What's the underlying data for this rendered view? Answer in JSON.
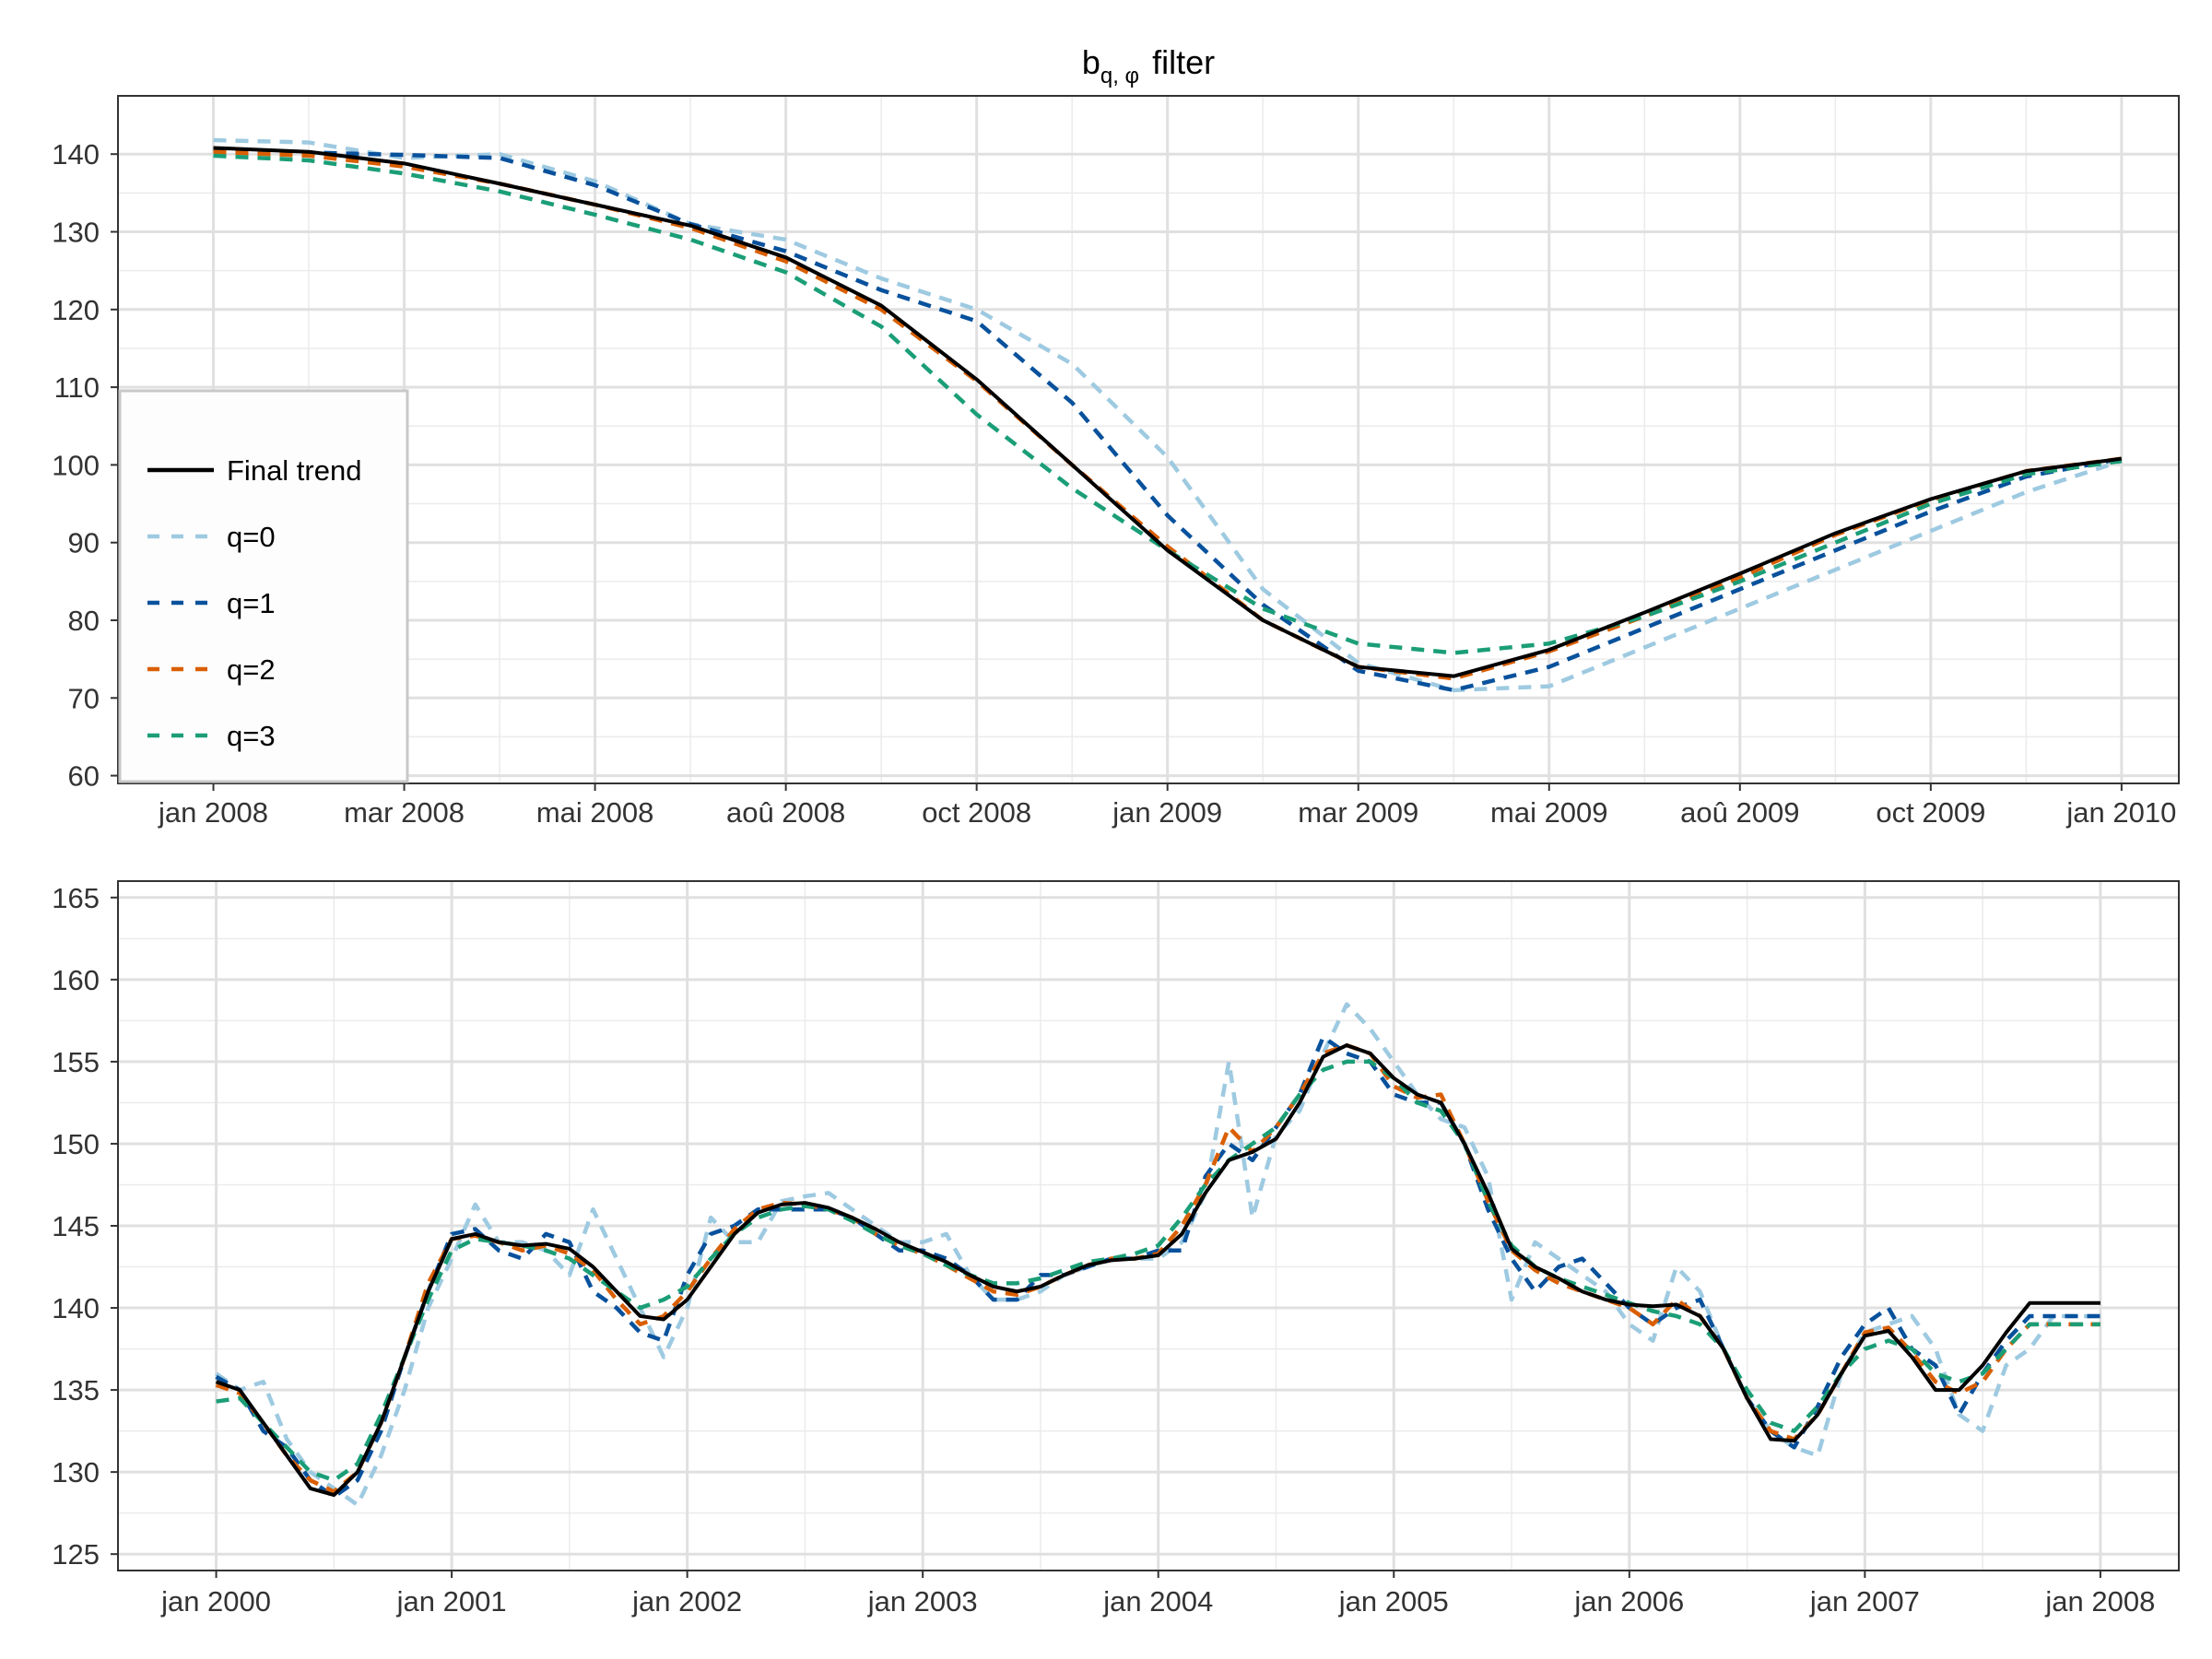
{
  "chart_data": [
    {
      "type": "line",
      "title": "b_{q, φ} filter",
      "title_main": "b",
      "title_subscript": "q, φ",
      "title_suffix": "filter",
      "xlabel": "",
      "ylabel": "",
      "x_ticks": [
        "jan 2008",
        "mar 2008",
        "mai 2008",
        "aoû 2008",
        "oct 2008",
        "jan 2009",
        "mar 2009",
        "mai 2009",
        "aoû 2009",
        "oct 2009",
        "jan 2010"
      ],
      "y_ticks": [
        60,
        70,
        80,
        90,
        100,
        110,
        120,
        130,
        140
      ],
      "ylim": [
        59,
        147.5
      ],
      "xlim": [
        -1,
        20.6
      ],
      "grid": true,
      "legend": {
        "position": "bottom-left inside",
        "entries": [
          "Final trend",
          "q=0",
          "q=1",
          "q=2",
          "q=3"
        ]
      },
      "x": [
        0,
        1,
        2,
        3,
        4,
        5,
        6,
        7,
        8,
        9,
        10,
        11,
        12,
        13,
        14,
        15,
        16,
        17,
        18,
        19,
        20
      ],
      "series": [
        {
          "name": "Final trend",
          "color": "#000000",
          "dash": "solid",
          "values": [
            140.8,
            140.3,
            138.8,
            136.2,
            133.5,
            130.8,
            126.7,
            120.5,
            111.0,
            100.0,
            89.0,
            80.0,
            74.0,
            72.8,
            76.2,
            81.0,
            86.0,
            91.2,
            95.6,
            99.2,
            100.8
          ]
        },
        {
          "name": "q=0",
          "color": "#9ecae1",
          "dash": "dashed",
          "values": [
            141.8,
            141.5,
            139.5,
            140.0,
            136.5,
            131.0,
            129.0,
            124.0,
            120.0,
            113.0,
            101.0,
            84.0,
            74.5,
            71.0,
            71.5,
            76.5,
            81.5,
            86.5,
            91.5,
            96.5,
            100.5
          ]
        },
        {
          "name": "q=1",
          "color": "#08519c",
          "dash": "dashed",
          "values": [
            140.5,
            140.2,
            139.9,
            139.5,
            136.0,
            131.0,
            127.5,
            122.5,
            118.5,
            108.0,
            93.5,
            82.0,
            73.5,
            71.0,
            74.0,
            79.0,
            84.0,
            89.0,
            94.0,
            98.5,
            100.8
          ]
        },
        {
          "name": "q=2",
          "color": "#d95f02",
          "dash": "dashed",
          "values": [
            140.3,
            139.8,
            138.4,
            136.2,
            133.5,
            130.5,
            126.2,
            120.0,
            110.8,
            100.0,
            89.5,
            80.0,
            74.0,
            72.5,
            76.0,
            80.5,
            85.5,
            91.0,
            95.5,
            99.2,
            100.8
          ]
        },
        {
          "name": "q=3",
          "color": "#1b9e77",
          "dash": "dashed",
          "values": [
            139.8,
            139.2,
            137.5,
            135.2,
            132.2,
            129.0,
            124.8,
            117.8,
            106.5,
            97.0,
            89.0,
            81.5,
            77.0,
            75.8,
            77.0,
            80.5,
            85.0,
            90.0,
            95.0,
            98.8,
            100.5
          ]
        }
      ]
    },
    {
      "type": "line",
      "title": "",
      "xlabel": "",
      "ylabel": "",
      "x_ticks": [
        "jan 2000",
        "jan 2001",
        "jan 2002",
        "jan 2003",
        "jan 2004",
        "jan 2005",
        "jan 2006",
        "jan 2007",
        "jan 2008"
      ],
      "y_ticks": [
        125,
        130,
        135,
        140,
        145,
        150,
        155,
        160,
        165
      ],
      "ylim": [
        124,
        166
      ],
      "xlim": [
        -0.417,
        8.333
      ],
      "grid": true,
      "x": [
        0.0,
        0.1,
        0.2,
        0.3,
        0.4,
        0.5,
        0.6,
        0.7,
        0.8,
        0.9,
        1.0,
        1.1,
        1.2,
        1.3,
        1.4,
        1.5,
        1.6,
        1.7,
        1.8,
        1.9,
        2.0,
        2.1,
        2.2,
        2.3,
        2.4,
        2.5,
        2.6,
        2.7,
        2.8,
        2.9,
        3.0,
        3.1,
        3.2,
        3.3,
        3.4,
        3.5,
        3.6,
        3.7,
        3.8,
        3.9,
        4.0,
        4.1,
        4.2,
        4.3,
        4.4,
        4.5,
        4.6,
        4.7,
        4.8,
        4.9,
        5.0,
        5.1,
        5.2,
        5.3,
        5.4,
        5.5,
        5.6,
        5.7,
        5.8,
        5.9,
        6.0,
        6.1,
        6.2,
        6.3,
        6.4,
        6.5,
        6.6,
        6.7,
        6.8,
        6.9,
        7.0,
        7.1,
        7.2,
        7.3,
        7.4,
        7.5,
        7.6,
        7.7,
        7.8,
        7.9,
        8.0
      ],
      "series": [
        {
          "name": "Final trend",
          "color": "#000000",
          "dash": "solid",
          "values": [
            135.5,
            135.0,
            133.0,
            131.0,
            129.0,
            128.6,
            130.0,
            133.0,
            137.0,
            141.0,
            144.2,
            144.5,
            144.0,
            143.8,
            143.9,
            143.6,
            142.5,
            141.0,
            139.5,
            139.3,
            140.5,
            142.5,
            144.5,
            145.8,
            146.3,
            146.4,
            146.1,
            145.5,
            144.8,
            144.0,
            143.4,
            142.8,
            142.0,
            141.3,
            141.0,
            141.3,
            142.0,
            142.6,
            142.9,
            143.0,
            143.2,
            144.5,
            147.0,
            149.0,
            149.5,
            150.3,
            152.5,
            155.3,
            156.0,
            155.5,
            154.0,
            153.0,
            152.5,
            150.0,
            147.0,
            143.6,
            142.5,
            141.8,
            141.0,
            140.5,
            140.2,
            140.1,
            140.2,
            139.5,
            137.5,
            134.5,
            132.0,
            131.9,
            133.5,
            136.0,
            138.3,
            138.6,
            137.0,
            135.0,
            135.0,
            136.5,
            138.5,
            140.3,
            140.3,
            140.3,
            140.3
          ]
        },
        {
          "name": "q=0",
          "color": "#9ecae1",
          "dash": "dashed",
          "values": [
            136.0,
            135.0,
            135.5,
            132.0,
            130.0,
            129.0,
            128.0,
            131.0,
            135.0,
            140.0,
            143.0,
            146.3,
            144.0,
            144.0,
            143.5,
            142.0,
            146.0,
            143.0,
            140.0,
            137.0,
            140.0,
            145.5,
            144.0,
            144.0,
            146.5,
            146.8,
            147.0,
            146.0,
            145.0,
            144.0,
            144.0,
            144.5,
            142.0,
            140.5,
            140.5,
            141.0,
            142.0,
            142.5,
            143.0,
            143.0,
            143.0,
            144.0,
            147.0,
            155.0,
            145.5,
            150.5,
            152.0,
            155.5,
            158.5,
            157.0,
            155.0,
            153.0,
            151.5,
            151.0,
            148.0,
            140.5,
            144.0,
            143.0,
            142.0,
            141.0,
            139.0,
            138.0,
            142.5,
            141.0,
            137.5,
            134.5,
            132.5,
            131.5,
            131.0,
            136.0,
            138.5,
            139.0,
            139.5,
            137.5,
            133.5,
            132.5,
            136.5,
            137.5,
            139.5,
            139.5,
            139.5
          ]
        },
        {
          "name": "q=1",
          "color": "#08519c",
          "dash": "dashed",
          "values": [
            135.8,
            135.0,
            132.5,
            131.5,
            129.5,
            128.5,
            129.5,
            132.5,
            137.0,
            141.0,
            144.5,
            144.8,
            143.5,
            143.0,
            144.5,
            144.0,
            141.0,
            140.0,
            138.5,
            138.0,
            142.0,
            144.5,
            145.0,
            146.0,
            146.0,
            146.0,
            146.0,
            145.5,
            144.5,
            143.5,
            143.5,
            143.0,
            142.0,
            140.5,
            140.5,
            142.0,
            142.0,
            142.5,
            143.0,
            143.0,
            143.5,
            143.5,
            148.0,
            150.0,
            149.0,
            151.0,
            153.0,
            156.5,
            155.5,
            155.0,
            153.0,
            152.5,
            152.5,
            150.0,
            146.0,
            143.0,
            141.0,
            142.5,
            143.0,
            141.5,
            140.0,
            139.0,
            140.0,
            140.5,
            137.5,
            134.5,
            132.5,
            131.5,
            134.0,
            137.0,
            139.0,
            140.0,
            137.5,
            136.5,
            133.5,
            136.0,
            138.0,
            139.5,
            139.5,
            139.5,
            139.5
          ]
        },
        {
          "name": "q=2",
          "color": "#d95f02",
          "dash": "dashed",
          "values": [
            135.3,
            134.8,
            133.0,
            131.0,
            129.5,
            128.8,
            130.0,
            133.0,
            137.0,
            141.5,
            144.2,
            144.4,
            144.0,
            143.5,
            143.8,
            143.3,
            142.3,
            140.5,
            139.0,
            139.5,
            141.0,
            143.0,
            144.8,
            146.0,
            146.4,
            146.3,
            146.0,
            145.5,
            144.5,
            143.8,
            143.3,
            142.6,
            141.8,
            141.0,
            140.8,
            141.3,
            142.0,
            142.6,
            143.0,
            143.0,
            143.3,
            145.0,
            147.5,
            151.0,
            149.5,
            151.0,
            153.0,
            155.5,
            156.0,
            155.5,
            153.5,
            152.8,
            153.0,
            150.0,
            146.5,
            143.5,
            142.3,
            141.5,
            141.0,
            140.5,
            140.0,
            139.0,
            140.5,
            139.5,
            137.5,
            134.5,
            132.5,
            132.0,
            133.5,
            136.0,
            138.5,
            138.8,
            137.3,
            135.5,
            134.8,
            135.5,
            137.5,
            139.0,
            139.0,
            139.0,
            139.0
          ]
        },
        {
          "name": "q=3",
          "color": "#1b9e77",
          "dash": "dashed",
          "values": [
            134.3,
            134.5,
            133.0,
            131.5,
            130.0,
            129.5,
            130.5,
            133.5,
            137.0,
            140.5,
            143.5,
            144.2,
            144.0,
            143.8,
            143.5,
            143.0,
            142.0,
            141.0,
            140.0,
            140.5,
            141.3,
            143.0,
            144.5,
            145.5,
            146.0,
            146.2,
            146.0,
            145.3,
            144.5,
            143.8,
            143.3,
            142.6,
            142.0,
            141.5,
            141.5,
            141.8,
            142.3,
            142.8,
            143.0,
            143.3,
            143.8,
            145.5,
            147.5,
            149.0,
            150.0,
            151.0,
            153.0,
            154.5,
            155.0,
            155.0,
            154.0,
            152.5,
            152.0,
            150.0,
            146.5,
            143.8,
            142.5,
            141.8,
            141.3,
            140.8,
            140.3,
            139.8,
            139.5,
            139.0,
            137.5,
            135.0,
            133.0,
            132.5,
            134.0,
            136.0,
            137.5,
            138.0,
            137.5,
            136.0,
            135.5,
            136.0,
            137.5,
            139.0,
            139.0,
            139.0,
            139.0
          ]
        }
      ]
    }
  ]
}
